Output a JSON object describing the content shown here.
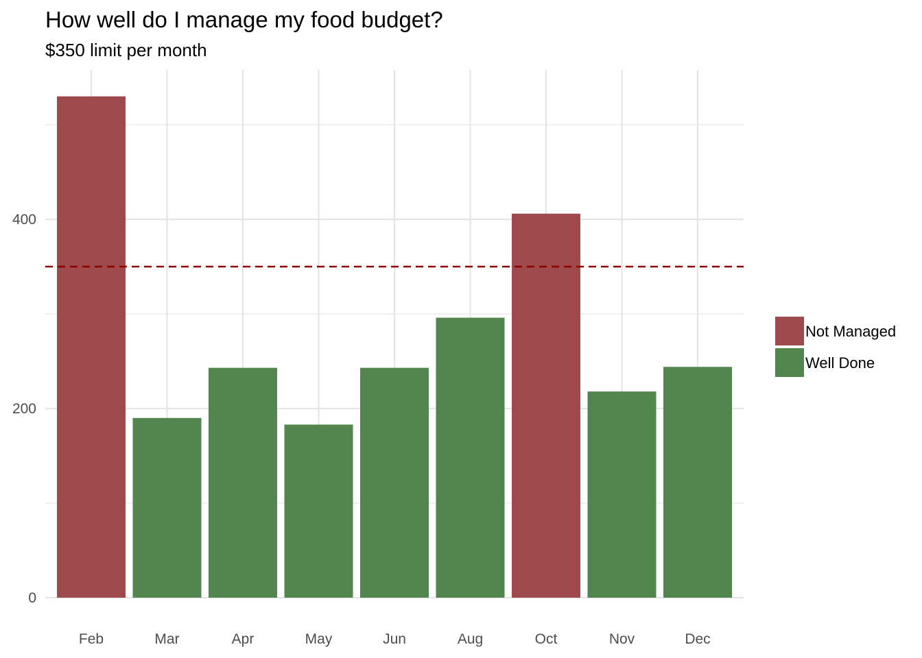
{
  "chart_data": {
    "type": "bar",
    "title": "How well do I manage my food budget?",
    "subtitle": "$350 limit per month",
    "xlabel": "",
    "ylabel": "",
    "categories": [
      "Feb",
      "Mar",
      "Apr",
      "May",
      "Jun",
      "Aug",
      "Oct",
      "Nov",
      "Dec"
    ],
    "values": [
      530,
      190,
      243,
      183,
      243,
      296,
      406,
      218,
      244
    ],
    "status": [
      "Not Managed",
      "Well Done",
      "Well Done",
      "Well Done",
      "Well Done",
      "Well Done",
      "Not Managed",
      "Well Done",
      "Well Done"
    ],
    "reference_line": {
      "value": 350,
      "style": "dashed",
      "color": "#8b0000"
    },
    "ylim": [
      0,
      560
    ],
    "yticks": [
      0,
      200,
      400
    ],
    "grid": true,
    "legend": {
      "position": "right",
      "entries": [
        {
          "label": "Not Managed",
          "color": "#9e494b"
        },
        {
          "label": "Well Done",
          "color": "#52864e"
        }
      ]
    },
    "colors": {
      "Not Managed": "#9e494b",
      "Well Done": "#52864e",
      "grid": "#e5e5e5",
      "tick_text": "#4d4d4d"
    }
  }
}
